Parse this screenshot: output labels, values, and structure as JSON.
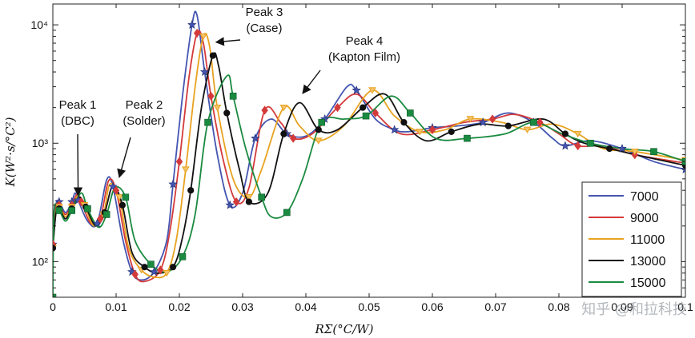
{
  "chart_data": {
    "type": "line",
    "xlabel": "RΣ(°C/W)",
    "ylabel": "K(W²·s/°C²)",
    "x_scale": "linear",
    "y_scale": "log",
    "xlim": [
      0,
      0.1
    ],
    "ylim": [
      50,
      15000
    ],
    "x_ticks": [
      0,
      0.01,
      0.02,
      0.03,
      0.04,
      0.05,
      0.06,
      0.07,
      0.08,
      0.09,
      0.1
    ],
    "x_tick_labels": [
      "0",
      "0.01",
      "0.02",
      "0.03",
      "0.04",
      "0.05",
      "0.06",
      "0.07",
      "0.08",
      "0.09",
      "0.1"
    ],
    "y_ticks": [
      100,
      1000,
      10000
    ],
    "y_tick_labels": [
      "10²",
      "10³",
      "10⁴"
    ],
    "grid": false,
    "legend_position": "bottom-right",
    "series": [
      {
        "name": "7000",
        "color": "#4455b0",
        "marker": "star",
        "points": [
          [
            0,
            140
          ],
          [
            0.0005,
            300
          ],
          [
            0.001,
            320
          ],
          [
            0.002,
            260
          ],
          [
            0.003,
            320
          ],
          [
            0.0035,
            380
          ],
          [
            0.004,
            330
          ],
          [
            0.0055,
            220
          ],
          [
            0.007,
            210
          ],
          [
            0.0085,
            490
          ],
          [
            0.0095,
            430
          ],
          [
            0.011,
            160
          ],
          [
            0.0125,
            82
          ],
          [
            0.014,
            70
          ],
          [
            0.016,
            82
          ],
          [
            0.018,
            150
          ],
          [
            0.019,
            450
          ],
          [
            0.0205,
            2500
          ],
          [
            0.022,
            10000
          ],
          [
            0.0228,
            12000
          ],
          [
            0.024,
            4000
          ],
          [
            0.026,
            800
          ],
          [
            0.028,
            300
          ],
          [
            0.03,
            380
          ],
          [
            0.032,
            1100
          ],
          [
            0.0345,
            1600
          ],
          [
            0.037,
            1200
          ],
          [
            0.04,
            1150
          ],
          [
            0.043,
            1600
          ],
          [
            0.0465,
            3000
          ],
          [
            0.048,
            2800
          ],
          [
            0.051,
            1600
          ],
          [
            0.054,
            1300
          ],
          [
            0.056,
            1250
          ],
          [
            0.06,
            1350
          ],
          [
            0.064,
            1400
          ],
          [
            0.068,
            1500
          ],
          [
            0.072,
            1800
          ],
          [
            0.076,
            1500
          ],
          [
            0.079,
            1100
          ],
          [
            0.081,
            950
          ],
          [
            0.085,
            1050
          ],
          [
            0.09,
            900
          ],
          [
            0.095,
            700
          ],
          [
            0.1,
            600
          ]
        ]
      },
      {
        "name": "9000",
        "color": "#d43a3a",
        "marker": "diamond",
        "points": [
          [
            0,
            140
          ],
          [
            0.0005,
            290
          ],
          [
            0.001,
            300
          ],
          [
            0.002,
            250
          ],
          [
            0.003,
            300
          ],
          [
            0.0038,
            370
          ],
          [
            0.0045,
            320
          ],
          [
            0.006,
            210
          ],
          [
            0.0075,
            230
          ],
          [
            0.0088,
            480
          ],
          [
            0.01,
            400
          ],
          [
            0.0115,
            150
          ],
          [
            0.013,
            78
          ],
          [
            0.0145,
            68
          ],
          [
            0.017,
            85
          ],
          [
            0.0185,
            180
          ],
          [
            0.02,
            700
          ],
          [
            0.0215,
            3500
          ],
          [
            0.0228,
            8500
          ],
          [
            0.0238,
            7000
          ],
          [
            0.025,
            2500
          ],
          [
            0.027,
            700
          ],
          [
            0.029,
            320
          ],
          [
            0.031,
            420
          ],
          [
            0.0335,
            1900
          ],
          [
            0.036,
            1500
          ],
          [
            0.038,
            1100
          ],
          [
            0.041,
            1200
          ],
          [
            0.045,
            2000
          ],
          [
            0.048,
            2600
          ],
          [
            0.051,
            1800
          ],
          [
            0.055,
            1200
          ],
          [
            0.06,
            1300
          ],
          [
            0.065,
            1500
          ],
          [
            0.0695,
            1600
          ],
          [
            0.073,
            1750
          ],
          [
            0.077,
            1500
          ],
          [
            0.08,
            1200
          ],
          [
            0.083,
            950
          ],
          [
            0.087,
            950
          ],
          [
            0.092,
            800
          ],
          [
            0.1,
            680
          ]
        ]
      },
      {
        "name": "11000",
        "color": "#e8a21f",
        "marker": "triangle-down",
        "points": [
          [
            0,
            130
          ],
          [
            0.0005,
            270
          ],
          [
            0.001,
            290
          ],
          [
            0.002,
            240
          ],
          [
            0.003,
            290
          ],
          [
            0.004,
            360
          ],
          [
            0.005,
            300
          ],
          [
            0.0065,
            200
          ],
          [
            0.008,
            250
          ],
          [
            0.009,
            450
          ],
          [
            0.0105,
            350
          ],
          [
            0.012,
            130
          ],
          [
            0.014,
            85
          ],
          [
            0.016,
            74
          ],
          [
            0.018,
            80
          ],
          [
            0.0195,
            150
          ],
          [
            0.021,
            600
          ],
          [
            0.0225,
            3000
          ],
          [
            0.0238,
            8000
          ],
          [
            0.0248,
            6500
          ],
          [
            0.026,
            2000
          ],
          [
            0.0285,
            500
          ],
          [
            0.031,
            350
          ],
          [
            0.033,
            600
          ],
          [
            0.0365,
            2000
          ],
          [
            0.039,
            1400
          ],
          [
            0.042,
            1050
          ],
          [
            0.046,
            1400
          ],
          [
            0.0505,
            2800
          ],
          [
            0.054,
            1700
          ],
          [
            0.058,
            1250
          ],
          [
            0.062,
            1300
          ],
          [
            0.066,
            1600
          ],
          [
            0.071,
            1500
          ],
          [
            0.075,
            1300
          ],
          [
            0.079,
            1450
          ],
          [
            0.083,
            1200
          ],
          [
            0.087,
            900
          ],
          [
            0.092,
            850
          ],
          [
            0.1,
            720
          ]
        ]
      },
      {
        "name": "13000",
        "color": "#111111",
        "marker": "circle",
        "points": [
          [
            0,
            130
          ],
          [
            0.0005,
            260
          ],
          [
            0.001,
            280
          ],
          [
            0.002,
            230
          ],
          [
            0.003,
            280
          ],
          [
            0.0042,
            350
          ],
          [
            0.0052,
            290
          ],
          [
            0.0068,
            200
          ],
          [
            0.0082,
            260
          ],
          [
            0.0095,
            440
          ],
          [
            0.011,
            300
          ],
          [
            0.0125,
            120
          ],
          [
            0.0145,
            90
          ],
          [
            0.0165,
            80
          ],
          [
            0.019,
            90
          ],
          [
            0.0205,
            160
          ],
          [
            0.0218,
            400
          ],
          [
            0.0235,
            2000
          ],
          [
            0.0253,
            5500
          ],
          [
            0.0262,
            4500
          ],
          [
            0.0275,
            1800
          ],
          [
            0.0295,
            600
          ],
          [
            0.031,
            320
          ],
          [
            0.034,
            380
          ],
          [
            0.0365,
            1200
          ],
          [
            0.039,
            2200
          ],
          [
            0.042,
            1300
          ],
          [
            0.045,
            1300
          ],
          [
            0.049,
            2000
          ],
          [
            0.0525,
            2600
          ],
          [
            0.0555,
            1500
          ],
          [
            0.059,
            1050
          ],
          [
            0.063,
            1250
          ],
          [
            0.0675,
            1450
          ],
          [
            0.072,
            1400
          ],
          [
            0.0775,
            1600
          ],
          [
            0.081,
            1200
          ],
          [
            0.084,
            1000
          ],
          [
            0.088,
            900
          ],
          [
            0.093,
            780
          ],
          [
            0.1,
            650
          ]
        ]
      },
      {
        "name": "15000",
        "color": "#1a8a40",
        "marker": "square",
        "points": [
          [
            0,
            50
          ],
          [
            0.0002,
            270
          ],
          [
            0.001,
            270
          ],
          [
            0.002,
            220
          ],
          [
            0.003,
            270
          ],
          [
            0.0045,
            380
          ],
          [
            0.0055,
            280
          ],
          [
            0.0072,
            195
          ],
          [
            0.0085,
            250
          ],
          [
            0.0098,
            420
          ],
          [
            0.0115,
            350
          ],
          [
            0.013,
            150
          ],
          [
            0.0155,
            95
          ],
          [
            0.018,
            82
          ],
          [
            0.0205,
            110
          ],
          [
            0.0225,
            250
          ],
          [
            0.0245,
            1500
          ],
          [
            0.0275,
            3700
          ],
          [
            0.0285,
            2500
          ],
          [
            0.0305,
            900
          ],
          [
            0.033,
            350
          ],
          [
            0.0345,
            240
          ],
          [
            0.037,
            260
          ],
          [
            0.0395,
            500
          ],
          [
            0.0425,
            1500
          ],
          [
            0.046,
            1600
          ],
          [
            0.0495,
            1700
          ],
          [
            0.0535,
            2500
          ],
          [
            0.0565,
            1800
          ],
          [
            0.0605,
            1100
          ],
          [
            0.0655,
            1100
          ],
          [
            0.0715,
            1200
          ],
          [
            0.076,
            1500
          ],
          [
            0.0805,
            1200
          ],
          [
            0.085,
            1000
          ],
          [
            0.09,
            900
          ],
          [
            0.095,
            850
          ],
          [
            0.1,
            700
          ]
        ]
      }
    ],
    "annotations": [
      {
        "lines": [
          "Peak 1",
          "(DBC)"
        ],
        "arrow_to": [
          0.004,
          330
        ]
      },
      {
        "lines": [
          "Peak 2",
          "(Solder)"
        ],
        "arrow_to": [
          0.0105,
          470
        ]
      },
      {
        "lines": [
          "Peak 3",
          "(Case)"
        ],
        "arrow_to": [
          0.0258,
          6500
        ]
      },
      {
        "lines": [
          "Peak 4",
          "(Kapton Film)"
        ],
        "arrow_to": [
          0.0395,
          2400
        ]
      }
    ]
  },
  "watermark": "知乎 @和拉科技"
}
